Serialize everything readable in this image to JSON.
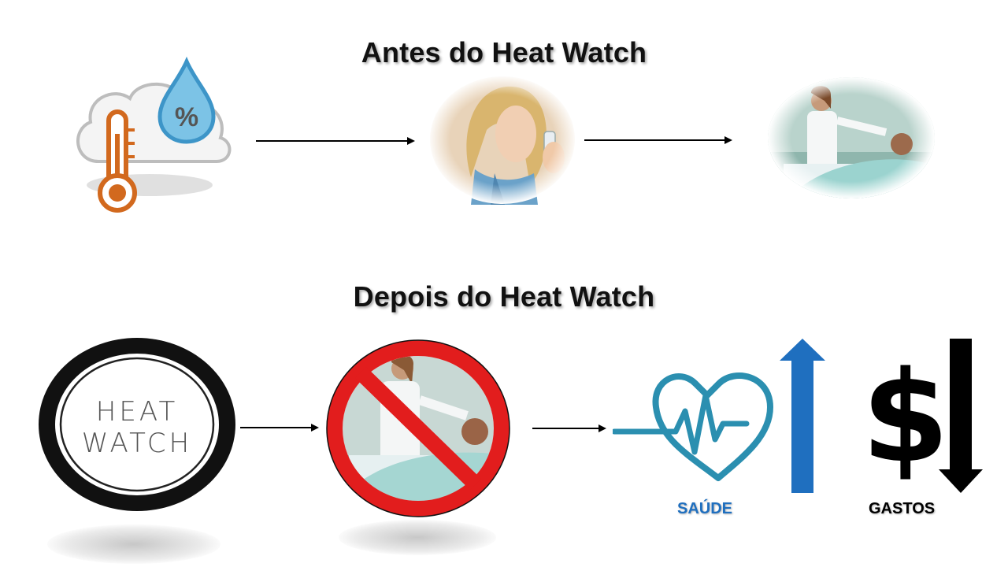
{
  "before": {
    "title": "Antes do Heat Watch",
    "weather_icon": "weather-humidity-temperature-icon",
    "weather_symbol": "%",
    "person_icon": "asthma-inhaler-icon",
    "hospital_icon": "hospital-doctor-patient-icon"
  },
  "after": {
    "title": "Depois do Heat Watch",
    "logo": {
      "line1": "HEAT",
      "line2": "WATCH"
    },
    "no_hospital_icon": "no-hospital-icon",
    "health_icon": "heart-pulse-icon",
    "health_label": "SAÚDE",
    "health_direction": "up",
    "cost_symbol": "$",
    "cost_label": "GASTOS",
    "cost_direction": "down"
  },
  "colors": {
    "health_blue": "#1f6fbf",
    "heart_teal": "#2b8fb0",
    "no_sign_red": "#e21d1d",
    "thermometer_orange": "#d2691e",
    "drop_blue": "#4aa8d8"
  }
}
